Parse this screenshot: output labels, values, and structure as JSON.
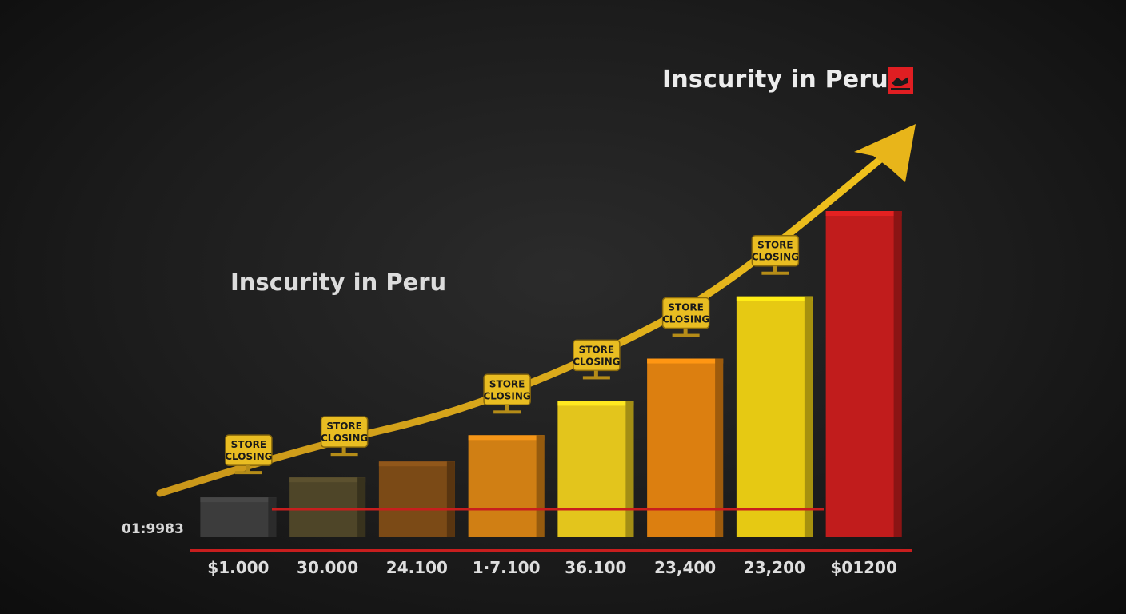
{
  "chart_data": {
    "type": "bar",
    "title": "Inscurity in Peru",
    "annotation_title": "Inscurity in Peru",
    "side_label": "01:9983",
    "categories": [
      "$1.000",
      "30.000",
      "24.100",
      "1·7.100",
      "36.100",
      "23,400",
      "23,200",
      "$01200"
    ],
    "values": [
      5,
      7.5,
      9.5,
      12.8,
      17.1,
      22.4,
      30.2,
      40.9
    ],
    "ylim": [
      0,
      41
    ],
    "grid": false,
    "trend": "rising arrow over the bars",
    "signs": [
      {
        "bar": 0,
        "line1": "STORE",
        "line2": "CLOSING"
      },
      {
        "bar": 1,
        "line1": "STORE",
        "line2": "CLOSING"
      },
      {
        "bar": 3,
        "line1": "STORE",
        "line2": "CLOSING"
      },
      {
        "bar": 4,
        "line1": "STORE",
        "line2": "CLOSING"
      },
      {
        "bar": 5,
        "line1": "STORE",
        "line2": "CLOSING"
      },
      {
        "bar": 6,
        "line1": "STORE",
        "line2": "CLOSING"
      }
    ],
    "bar_colors": [
      "#3c3c3c",
      "#4e4528",
      "#7b4a16",
      "#d07f14",
      "#e3c51c",
      "#dc7f10",
      "#e6c913",
      "#c11c1c"
    ],
    "colors": {
      "arrow": "#e8b51a",
      "baseline": "#c81e1e",
      "sign_bg": "#e9bd22",
      "sign_text": "#1a1a1a"
    }
  }
}
